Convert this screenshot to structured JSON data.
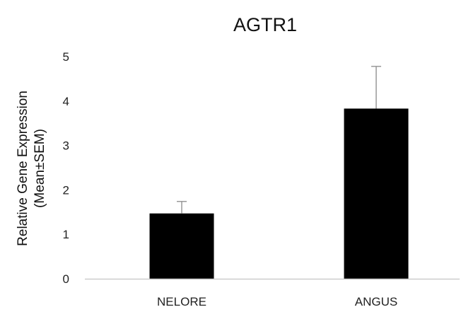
{
  "chart_data": {
    "type": "bar",
    "title": "AGTR1",
    "ylabel_lines": [
      "Relative Gene Expression",
      "(Mean±SEM)"
    ],
    "xlabel": "",
    "categories": [
      "NELORE",
      "ANGUS"
    ],
    "values": [
      1.47,
      3.83
    ],
    "errors": [
      0.27,
      0.95
    ],
    "ylim": [
      0,
      5
    ],
    "yticks": [
      0,
      1,
      2,
      3,
      4,
      5
    ],
    "bar_color": "#000000",
    "error_bar_color": "#999999",
    "axis_color": "#cccccc",
    "grid": false,
    "legend": "none"
  }
}
